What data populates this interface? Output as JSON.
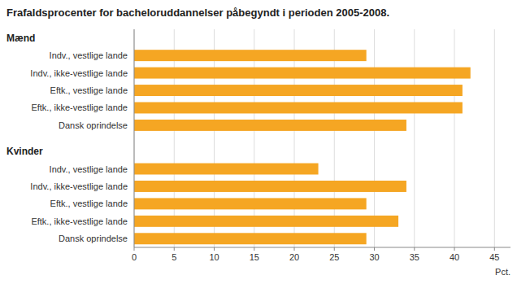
{
  "chart_data": {
    "type": "bar",
    "orientation": "horizontal",
    "title": "Frafaldsprocenter for bacheloruddannelser påbegyndt i perioden 2005-2008.",
    "categories": [
      "Indv., vestlige lande",
      "Indv., ikke-vestlige lande",
      "Eftk., vestlige lande",
      "Eftk., ikke-vestlige lande",
      "Dansk oprindelse"
    ],
    "series": [
      {
        "name": "Mænd",
        "color": "#F5A623",
        "values": [
          29,
          42,
          41,
          41,
          34
        ]
      },
      {
        "name": "Kvinder",
        "color": "#F5A623",
        "values": [
          23,
          34,
          29,
          33,
          29
        ]
      }
    ],
    "xlabel": "Pct.",
    "xlim": [
      0,
      47
    ],
    "xticks": [
      0,
      5,
      10,
      15,
      20,
      25,
      30,
      35,
      40,
      45
    ],
    "grid": true
  }
}
